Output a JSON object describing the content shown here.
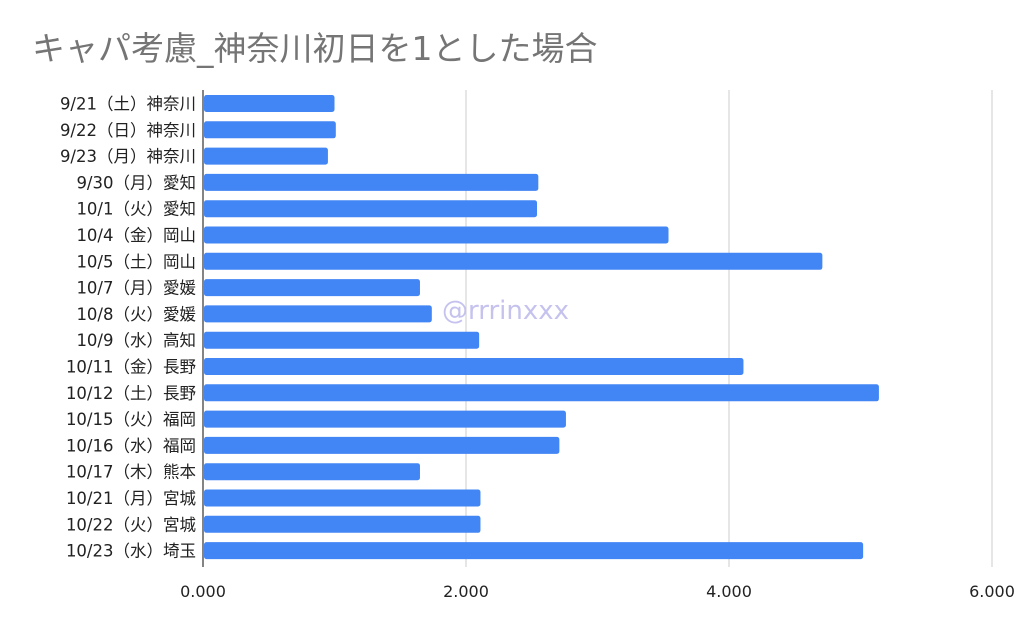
{
  "chart_data": {
    "type": "bar",
    "orientation": "horizontal",
    "title": "キャパ考慮_神奈川初日を1とした場合",
    "xlabel": "",
    "ylabel": "",
    "xlim": [
      0,
      6
    ],
    "x_ticks": [
      "0.000",
      "2.000",
      "4.000",
      "6.000"
    ],
    "grid": "vertical",
    "legend": "none",
    "bar_color": "#4285f4",
    "grid_color": "#cccccc",
    "categories": [
      "9/21（土）神奈川",
      "9/22（日）神奈川",
      "9/23（月）神奈川",
      "9/30（月）愛知",
      "10/1（火）愛知",
      "10/4（金）岡山",
      "10/5（土）岡山",
      "10/7（月）愛媛",
      "10/8（火）愛媛",
      "10/9（水）高知",
      "10/11（金）長野",
      "10/12（土）長野",
      "10/15（火）福岡",
      "10/16（水）福岡",
      "10/17（木）熊本",
      "10/21（月）宮城",
      "10/22（火）宮城",
      "10/23（水）埼玉"
    ],
    "values": [
      1.0,
      1.01,
      0.95,
      2.55,
      2.54,
      3.54,
      4.71,
      1.65,
      1.74,
      2.1,
      4.11,
      5.14,
      2.76,
      2.71,
      1.65,
      2.11,
      2.11,
      5.02
    ]
  },
  "watermark": "@rrrinxxx"
}
